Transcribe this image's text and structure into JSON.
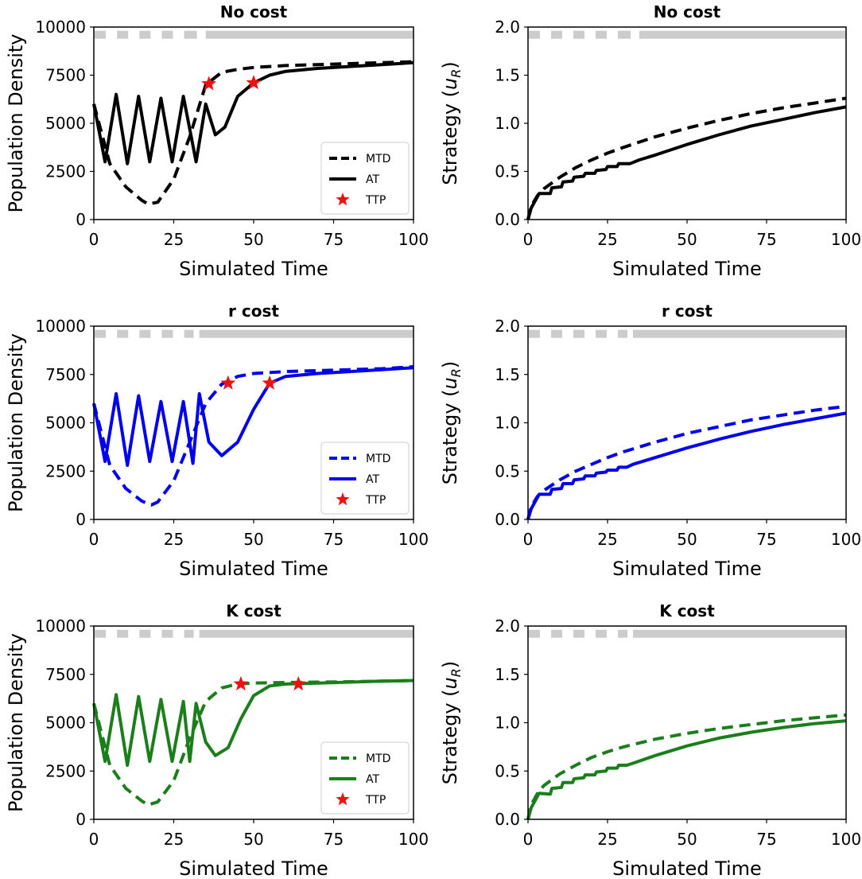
{
  "figure": {
    "colors": {
      "black": "#000000",
      "blue": "#0000ee",
      "green": "#1a7f1a",
      "star": "#ee1111",
      "treatment": "#cccccc"
    }
  },
  "legend": {
    "mtd": "MTD",
    "at": "AT",
    "ttp": "TTP"
  },
  "chart_data": [
    {
      "id": "density-no-cost",
      "type": "line",
      "title": "No cost",
      "xlabel": "Simulated Time",
      "ylabel": "Population Density",
      "xlim": [
        0,
        100
      ],
      "ylim": [
        0,
        10000
      ],
      "xticks": [
        "0",
        "25",
        "50",
        "75",
        "100"
      ],
      "yticks": [
        "0",
        "2500",
        "5000",
        "7500",
        "10000"
      ],
      "color": "black",
      "legend": true,
      "treatment_bar": {
        "level": 9600,
        "on_segments": [
          [
            0,
            3.5
          ],
          [
            7,
            10.5
          ],
          [
            14,
            17.5
          ],
          [
            21,
            24.5
          ],
          [
            28,
            32
          ]
        ],
        "continuous_from": 35
      },
      "series": [
        {
          "name": "MTD",
          "style": "dashed",
          "x": [
            0,
            5,
            10,
            15,
            17,
            20,
            25,
            30,
            35,
            40,
            45,
            50,
            60,
            70,
            80,
            90,
            100
          ],
          "y": [
            6000,
            2900,
            1700,
            1000,
            800,
            900,
            2100,
            4300,
            7000,
            7650,
            7800,
            7900,
            8000,
            8050,
            8100,
            8150,
            8200
          ]
        },
        {
          "name": "AT",
          "style": "solid",
          "x": [
            0,
            3.5,
            7,
            10.5,
            14,
            17.5,
            21,
            24.5,
            28,
            32,
            35,
            38,
            41,
            45,
            50,
            55,
            60,
            70,
            80,
            90,
            100
          ],
          "y": [
            6000,
            3000,
            6500,
            2900,
            6400,
            3000,
            6300,
            3000,
            6400,
            3000,
            6000,
            4400,
            4800,
            6400,
            7100,
            7500,
            7700,
            7850,
            7950,
            8050,
            8150
          ]
        }
      ],
      "ttp": [
        {
          "x": 36,
          "y": 7050
        },
        {
          "x": 50,
          "y": 7100
        }
      ]
    },
    {
      "id": "strategy-no-cost",
      "type": "line",
      "title": "No cost",
      "xlabel": "Simulated Time",
      "ylabel": "Strategy (u_R)",
      "xlim": [
        0,
        100
      ],
      "ylim": [
        0,
        2
      ],
      "xticks": [
        "0",
        "25",
        "50",
        "75",
        "100"
      ],
      "yticks": [
        "0.0",
        "0.5",
        "1.0",
        "1.5",
        "2.0"
      ],
      "color": "black",
      "legend": false,
      "treatment_bar": {
        "level": 1.92,
        "on_segments": [
          [
            0,
            3.5
          ],
          [
            7,
            10.5
          ],
          [
            14,
            17.5
          ],
          [
            21,
            24.5
          ],
          [
            28,
            32
          ]
        ],
        "continuous_from": 35
      },
      "series": [
        {
          "name": "MTD",
          "style": "dashed",
          "x": [
            0,
            1,
            3,
            5,
            10,
            15,
            20,
            25,
            30,
            40,
            50,
            60,
            70,
            80,
            90,
            100
          ],
          "y": [
            0.0,
            0.14,
            0.25,
            0.32,
            0.44,
            0.54,
            0.62,
            0.69,
            0.75,
            0.86,
            0.95,
            1.03,
            1.1,
            1.16,
            1.21,
            1.26
          ]
        },
        {
          "name": "AT",
          "style": "solid",
          "x": [
            0,
            1,
            3,
            3.5,
            7,
            7.5,
            10.5,
            11,
            14,
            14.5,
            17.5,
            18,
            21,
            21.5,
            24.5,
            25,
            28,
            28.5,
            32,
            35,
            40,
            50,
            60,
            70,
            80,
            90,
            100
          ],
          "y": [
            0.0,
            0.12,
            0.24,
            0.27,
            0.27,
            0.33,
            0.34,
            0.39,
            0.4,
            0.44,
            0.45,
            0.48,
            0.48,
            0.51,
            0.52,
            0.55,
            0.55,
            0.58,
            0.58,
            0.62,
            0.67,
            0.78,
            0.88,
            0.97,
            1.04,
            1.11,
            1.17
          ]
        }
      ]
    },
    {
      "id": "density-r-cost",
      "type": "line",
      "title": "r cost",
      "xlabel": "Simulated Time",
      "ylabel": "Population Density",
      "xlim": [
        0,
        100
      ],
      "ylim": [
        0,
        10000
      ],
      "xticks": [
        "0",
        "25",
        "50",
        "75",
        "100"
      ],
      "yticks": [
        "0",
        "2500",
        "5000",
        "7500",
        "10000"
      ],
      "color": "blue",
      "legend": true,
      "treatment_bar": {
        "level": 9600,
        "on_segments": [
          [
            0,
            3.5
          ],
          [
            7,
            10.5
          ],
          [
            14,
            17.5
          ],
          [
            21,
            24.5
          ],
          [
            28,
            31
          ]
        ],
        "continuous_from": 33
      },
      "series": [
        {
          "name": "MTD",
          "style": "dashed",
          "x": [
            0,
            5,
            10,
            15,
            18,
            20,
            25,
            30,
            35,
            40,
            45,
            50,
            60,
            70,
            80,
            90,
            100
          ],
          "y": [
            6000,
            2800,
            1600,
            950,
            750,
            900,
            2000,
            4000,
            6000,
            7000,
            7400,
            7550,
            7650,
            7700,
            7750,
            7800,
            7900
          ]
        },
        {
          "name": "AT",
          "style": "solid",
          "x": [
            0,
            3.5,
            7,
            10.5,
            14,
            17.5,
            21,
            24.5,
            28,
            31,
            33,
            36,
            40,
            45,
            50,
            55,
            60,
            70,
            80,
            90,
            100
          ],
          "y": [
            6000,
            3000,
            6500,
            2800,
            6400,
            3000,
            6100,
            3000,
            6100,
            2900,
            6500,
            4000,
            3300,
            4000,
            5700,
            7050,
            7400,
            7550,
            7650,
            7750,
            7850
          ]
        }
      ],
      "ttp": [
        {
          "x": 42,
          "y": 7050
        },
        {
          "x": 55,
          "y": 7050
        }
      ]
    },
    {
      "id": "strategy-r-cost",
      "type": "line",
      "title": "r cost",
      "xlabel": "Simulated Time",
      "ylabel": "Strategy (u_R)",
      "xlim": [
        0,
        100
      ],
      "ylim": [
        0,
        2
      ],
      "xticks": [
        "0",
        "25",
        "50",
        "75",
        "100"
      ],
      "yticks": [
        "0.0",
        "0.5",
        "1.0",
        "1.5",
        "2.0"
      ],
      "color": "blue",
      "legend": false,
      "treatment_bar": {
        "level": 1.92,
        "on_segments": [
          [
            0,
            3.5
          ],
          [
            7,
            10.5
          ],
          [
            14,
            17.5
          ],
          [
            21,
            24.5
          ],
          [
            28,
            31
          ]
        ],
        "continuous_from": 33
      },
      "series": [
        {
          "name": "MTD",
          "style": "dashed",
          "x": [
            0,
            1,
            3,
            5,
            10,
            15,
            20,
            25,
            30,
            40,
            50,
            60,
            70,
            80,
            90,
            100
          ],
          "y": [
            0.0,
            0.13,
            0.24,
            0.3,
            0.41,
            0.5,
            0.57,
            0.64,
            0.7,
            0.8,
            0.89,
            0.96,
            1.03,
            1.08,
            1.13,
            1.17
          ]
        },
        {
          "name": "AT",
          "style": "solid",
          "x": [
            0,
            1,
            3,
            3.5,
            7,
            7.5,
            10.5,
            11,
            14,
            14.5,
            17.5,
            18,
            21,
            21.5,
            24.5,
            25,
            28,
            28.5,
            31,
            33,
            40,
            50,
            60,
            70,
            80,
            90,
            100
          ],
          "y": [
            0.0,
            0.11,
            0.23,
            0.26,
            0.26,
            0.31,
            0.32,
            0.37,
            0.37,
            0.41,
            0.42,
            0.45,
            0.45,
            0.48,
            0.49,
            0.51,
            0.51,
            0.54,
            0.54,
            0.57,
            0.64,
            0.74,
            0.83,
            0.91,
            0.98,
            1.04,
            1.1
          ]
        }
      ]
    },
    {
      "id": "density-k-cost",
      "type": "line",
      "title": "K cost",
      "xlabel": "Simulated Time",
      "ylabel": "Population Density",
      "xlim": [
        0,
        100
      ],
      "ylim": [
        0,
        10000
      ],
      "xticks": [
        "0",
        "25",
        "50",
        "75",
        "100"
      ],
      "yticks": [
        "0",
        "2500",
        "5000",
        "7500",
        "10000"
      ],
      "color": "green",
      "legend": true,
      "treatment_bar": {
        "level": 9600,
        "on_segments": [
          [
            0,
            3.5
          ],
          [
            7,
            10.5
          ],
          [
            14,
            17.5
          ],
          [
            21,
            24.5
          ],
          [
            28,
            31
          ]
        ],
        "continuous_from": 33
      },
      "series": [
        {
          "name": "MTD",
          "style": "dashed",
          "x": [
            0,
            5,
            10,
            15,
            17,
            20,
            25,
            30,
            35,
            40,
            45,
            50,
            60,
            70,
            80,
            90,
            100
          ],
          "y": [
            6000,
            2800,
            1600,
            950,
            750,
            900,
            2000,
            4200,
            6100,
            6800,
            7000,
            7050,
            7080,
            7100,
            7120,
            7150,
            7180
          ]
        },
        {
          "name": "AT",
          "style": "solid",
          "x": [
            0,
            3.5,
            7,
            10.5,
            14,
            17.5,
            21,
            24.5,
            28,
            30,
            32,
            35,
            38,
            42,
            46,
            50,
            55,
            60,
            70,
            80,
            90,
            100
          ],
          "y": [
            6000,
            3000,
            6450,
            2800,
            6350,
            3000,
            6200,
            3000,
            6100,
            3000,
            6000,
            4000,
            3300,
            3700,
            5200,
            6400,
            6900,
            7000,
            7050,
            7100,
            7150,
            7180
          ]
        }
      ],
      "ttp": [
        {
          "x": 46,
          "y": 7000
        },
        {
          "x": 64,
          "y": 7000
        }
      ]
    },
    {
      "id": "strategy-k-cost",
      "type": "line",
      "title": "K cost",
      "xlabel": "Simulated Time",
      "ylabel": "Strategy (u_R)",
      "xlim": [
        0,
        100
      ],
      "ylim": [
        0,
        2
      ],
      "xticks": [
        "0",
        "25",
        "50",
        "75",
        "100"
      ],
      "yticks": [
        "0.0",
        "0.5",
        "1.0",
        "1.5",
        "2.0"
      ],
      "color": "green",
      "legend": false,
      "treatment_bar": {
        "level": 1.92,
        "on_segments": [
          [
            0,
            3.5
          ],
          [
            7,
            10.5
          ],
          [
            14,
            17.5
          ],
          [
            21,
            24.5
          ],
          [
            28,
            31
          ]
        ],
        "continuous_from": 33
      },
      "series": [
        {
          "name": "MTD",
          "style": "dashed",
          "x": [
            0,
            1,
            3,
            5,
            10,
            15,
            20,
            25,
            30,
            40,
            50,
            60,
            70,
            80,
            90,
            100
          ],
          "y": [
            0.0,
            0.15,
            0.27,
            0.35,
            0.47,
            0.56,
            0.64,
            0.7,
            0.75,
            0.83,
            0.89,
            0.94,
            0.98,
            1.02,
            1.05,
            1.08
          ]
        },
        {
          "name": "AT",
          "style": "solid",
          "x": [
            0,
            1,
            3,
            3.5,
            7,
            7.5,
            10.5,
            11,
            14,
            14.5,
            17.5,
            18,
            21,
            21.5,
            24.5,
            25,
            28,
            28.5,
            31,
            33,
            40,
            50,
            60,
            70,
            80,
            90,
            100
          ],
          "y": [
            0.0,
            0.12,
            0.24,
            0.27,
            0.26,
            0.32,
            0.33,
            0.38,
            0.38,
            0.42,
            0.43,
            0.46,
            0.46,
            0.49,
            0.5,
            0.53,
            0.53,
            0.56,
            0.56,
            0.58,
            0.66,
            0.76,
            0.84,
            0.9,
            0.95,
            0.99,
            1.02
          ]
        }
      ]
    }
  ]
}
